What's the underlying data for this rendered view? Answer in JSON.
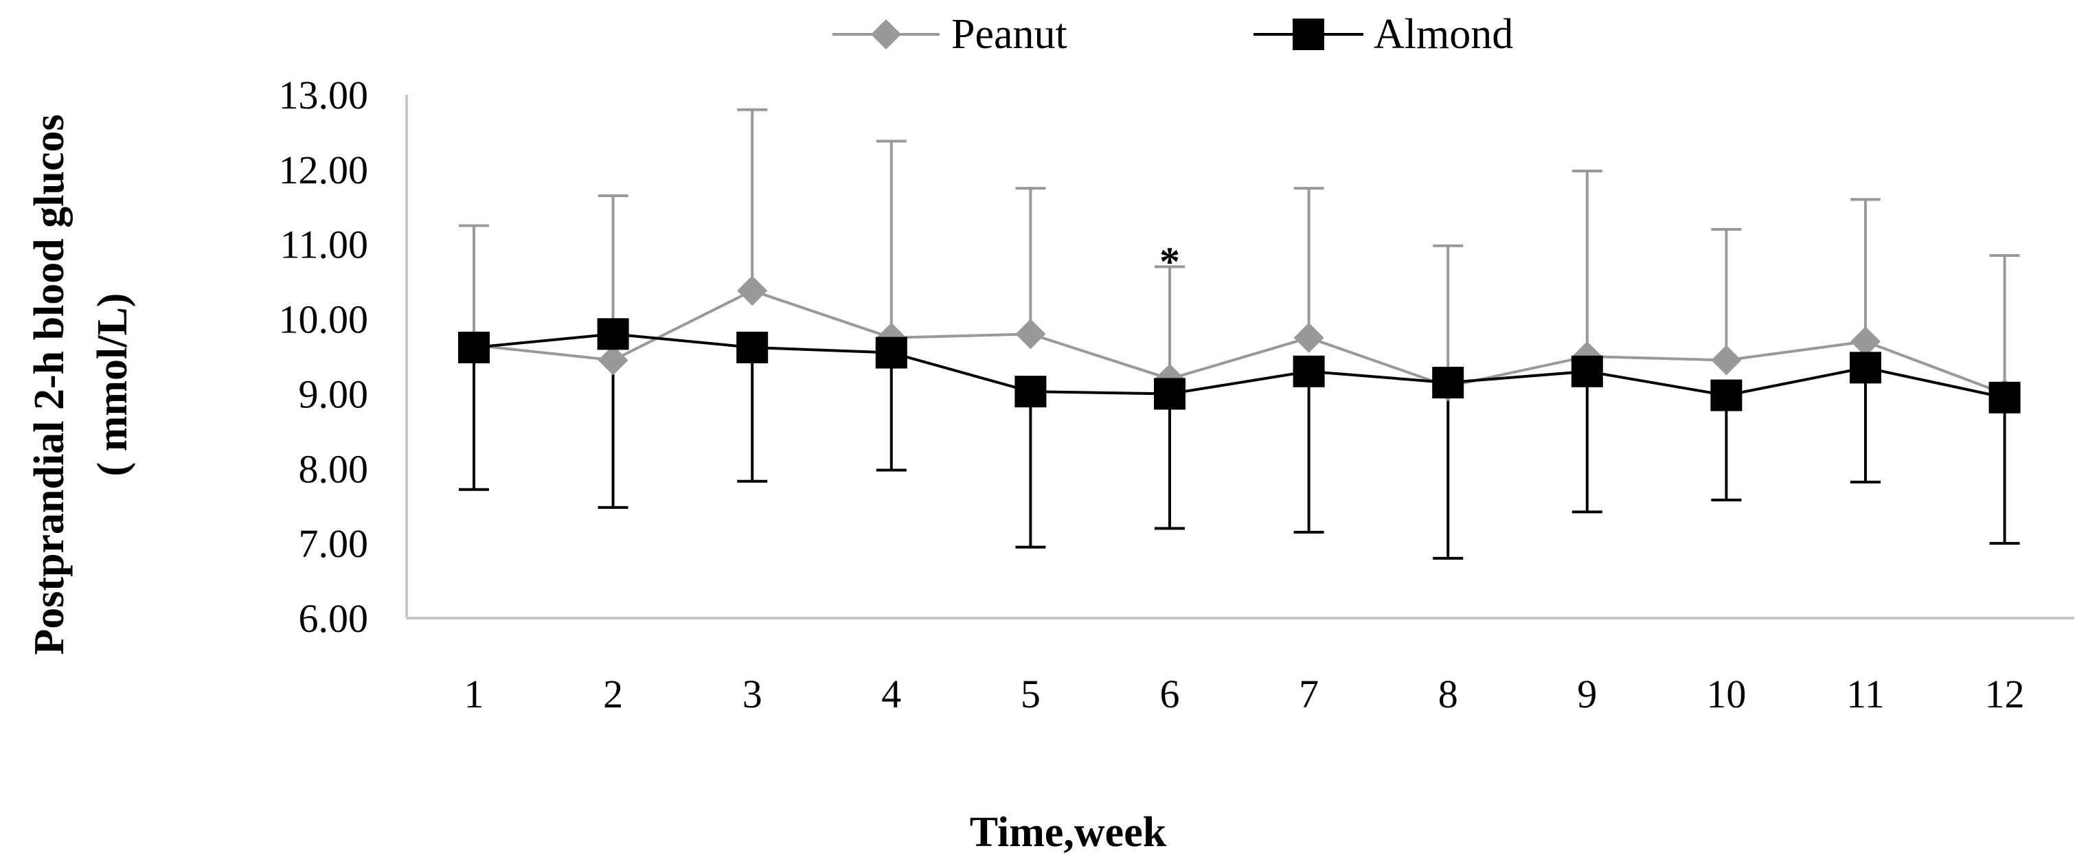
{
  "chart_data": {
    "type": "line",
    "title": "",
    "xlabel": "Time,week",
    "ylabel_line1": "Postprandial 2-h blood glucos",
    "ylabel_line2": "( mmol/L)",
    "ylim": [
      6,
      13
    ],
    "yticks": [
      "6.00",
      "7.00",
      "8.00",
      "9.00",
      "10.00",
      "11.00",
      "12.00",
      "13.00"
    ],
    "categories": [
      "1",
      "2",
      "3",
      "4",
      "5",
      "6",
      "7",
      "8",
      "9",
      "10",
      "11",
      "12"
    ],
    "legend_position": "top-center",
    "series": [
      {
        "name": "Peanut",
        "color": "#999999",
        "marker": "diamond",
        "error_direction": "up",
        "values": [
          9.65,
          9.45,
          10.38,
          9.75,
          9.8,
          9.2,
          9.75,
          9.1,
          9.5,
          9.45,
          9.7,
          9.0
        ],
        "error_end": [
          11.25,
          11.65,
          12.8,
          12.38,
          11.75,
          10.7,
          11.75,
          10.98,
          11.98,
          11.2,
          11.6,
          10.85
        ]
      },
      {
        "name": "Almond",
        "color": "#000000",
        "marker": "square",
        "error_direction": "down",
        "values": [
          9.62,
          9.8,
          9.62,
          9.55,
          9.03,
          9.0,
          9.3,
          9.15,
          9.3,
          8.98,
          9.35,
          8.95
        ],
        "error_end": [
          7.72,
          7.48,
          7.83,
          7.98,
          6.95,
          7.2,
          7.15,
          6.8,
          7.42,
          7.58,
          7.82,
          7.0
        ]
      }
    ],
    "annotations": [
      {
        "category": "6",
        "value": 10.95,
        "text": "*"
      }
    ]
  }
}
